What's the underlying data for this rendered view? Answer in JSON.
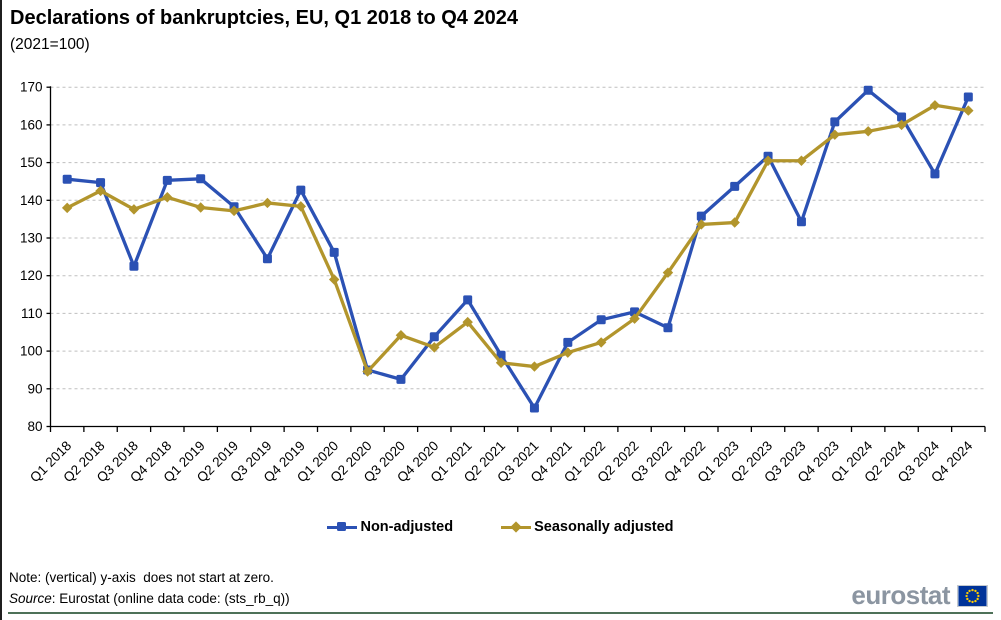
{
  "title": "Declarations of bankruptcies, EU, Q1 2018 to Q4 2024",
  "subtitle": "(2021=100)",
  "chart_data": {
    "type": "line",
    "categories": [
      "Q1 2018",
      "Q2 2018",
      "Q3 2018",
      "Q4 2018",
      "Q1 2019",
      "Q2 2019",
      "Q3 2019",
      "Q4 2019",
      "Q1 2020",
      "Q2 2020",
      "Q3 2020",
      "Q4 2020",
      "Q1 2021",
      "Q2 2021",
      "Q3 2021",
      "Q4 2021",
      "Q1 2022",
      "Q2 2022",
      "Q3 2022",
      "Q4 2022",
      "Q1 2023",
      "Q2 2023",
      "Q3 2023",
      "Q4 2023",
      "Q1 2024",
      "Q2 2024",
      "Q3 2024",
      "Q4 2024"
    ],
    "series": [
      {
        "name": "Non-adjusted",
        "marker": "square",
        "color": "#2b51b4",
        "values": [
          145.6,
          144.7,
          122.5,
          145.3,
          145.7,
          138.3,
          124.5,
          142.7,
          126.2,
          95.0,
          92.5,
          103.8,
          113.6,
          98.9,
          84.9,
          102.3,
          108.3,
          110.4,
          106.2,
          135.8,
          143.7,
          151.7,
          134.3,
          160.8,
          169.2,
          162.1,
          147.0,
          167.4
        ]
      },
      {
        "name": "Seasonally adjusted",
        "marker": "diamond",
        "color": "#b2952c",
        "values": [
          138.0,
          142.5,
          137.6,
          140.8,
          138.1,
          137.2,
          139.3,
          138.4,
          119.0,
          94.6,
          104.2,
          101.0,
          107.7,
          96.9,
          95.9,
          99.6,
          102.3,
          108.6,
          120.8,
          133.6,
          134.1,
          150.5,
          150.5,
          157.4,
          158.3,
          160.0,
          165.2,
          163.8
        ]
      }
    ],
    "ylim": [
      80,
      170
    ],
    "ytick_step": 10,
    "yticks": [
      80,
      90,
      100,
      110,
      120,
      130,
      140,
      150,
      160,
      170
    ],
    "grid": "horizontal-dashed",
    "legend_position": "bottom",
    "title": "Declarations of bankruptcies, EU, Q1 2018 to Q4 2024",
    "subtitle": "(2021=100)"
  },
  "footer": {
    "note": "Note: (vertical) y-axis  does not start at zero.",
    "source_label": "Source",
    "source_rest": ": Eurostat (online data code: (sts_rb_q))"
  },
  "logo": {
    "text": "eurostat",
    "flag_color": "#003399",
    "star_color": "#ffcc00",
    "text_color": "#8b95a1"
  },
  "colors": {
    "grid": "#bfbfbf",
    "axis": "#000000",
    "bottom_rule": "#4e7158",
    "left_border": "#1f1f1f"
  }
}
